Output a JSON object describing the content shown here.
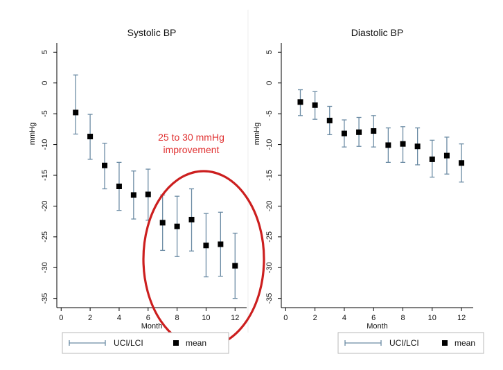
{
  "chart_data": [
    {
      "type": "scatter",
      "title": "Systolic BP",
      "xlabel": "Month",
      "ylabel": "mmHg",
      "x": [
        1,
        2,
        3,
        4,
        5,
        6,
        7,
        8,
        9,
        10,
        11,
        12
      ],
      "series": [
        {
          "name": "mean",
          "values": [
            -4.8,
            -8.7,
            -13.4,
            -16.8,
            -18.2,
            -18.1,
            -22.7,
            -23.3,
            -22.2,
            -26.4,
            -26.2,
            -29.7
          ]
        },
        {
          "name": "UCI/LCI",
          "upper": [
            1.3,
            -5.1,
            -9.8,
            -12.9,
            -14.3,
            -14.0,
            -18.2,
            -18.4,
            -17.2,
            -21.2,
            -21.0,
            -24.4
          ],
          "lower": [
            -8.3,
            -12.4,
            -17.2,
            -20.7,
            -22.1,
            -22.3,
            -27.2,
            -28.2,
            -27.3,
            -31.5,
            -31.4,
            -35.0
          ]
        }
      ],
      "xticks": [
        0,
        2,
        4,
        6,
        8,
        10,
        12
      ],
      "yticks": [
        5,
        0,
        -5,
        -10,
        -15,
        -20,
        -25,
        -30,
        -35
      ],
      "xlim": [
        -0.3,
        12.8
      ],
      "ylim": [
        -36.5,
        6.5
      ],
      "legend": [
        "UCI/LCI",
        "mean"
      ],
      "legend_position": "bottom",
      "annotations": [
        {
          "text": "25 to 30 mmHg",
          "color": "#e03030"
        },
        {
          "text": "improvement",
          "color": "#e03030"
        }
      ],
      "highlight_ellipse_color": "#cc1f1f",
      "errorbar_color": "#6b8ba4",
      "marker_color": "#000000"
    },
    {
      "type": "scatter",
      "title": "Diastolic BP",
      "xlabel": "Month",
      "ylabel": "mmHg",
      "x": [
        1,
        2,
        3,
        4,
        5,
        6,
        7,
        8,
        9,
        10,
        11,
        12
      ],
      "series": [
        {
          "name": "mean",
          "values": [
            -3.1,
            -3.6,
            -6.1,
            -8.2,
            -8.0,
            -7.8,
            -10.1,
            -9.9,
            -10.3,
            -12.4,
            -11.8,
            -13.0
          ]
        },
        {
          "name": "UCI/LCI",
          "upper": [
            -1.1,
            -1.4,
            -3.8,
            -6.0,
            -5.6,
            -5.3,
            -7.3,
            -7.1,
            -7.3,
            -9.3,
            -8.8,
            -9.9
          ],
          "lower": [
            -5.3,
            -5.9,
            -8.4,
            -10.4,
            -10.3,
            -10.4,
            -12.9,
            -12.9,
            -13.3,
            -15.3,
            -14.8,
            -16.1
          ]
        }
      ],
      "xticks": [
        0,
        2,
        4,
        6,
        8,
        10,
        12
      ],
      "yticks": [
        5,
        0,
        -5,
        -10,
        -15,
        -20,
        -25,
        -30,
        -35
      ],
      "xlim": [
        -0.3,
        12.8
      ],
      "ylim": [
        -36.5,
        6.5
      ],
      "legend": [
        "UCI/LCI",
        "mean"
      ],
      "legend_position": "bottom",
      "errorbar_color": "#6b8ba4",
      "marker_color": "#000000"
    }
  ]
}
